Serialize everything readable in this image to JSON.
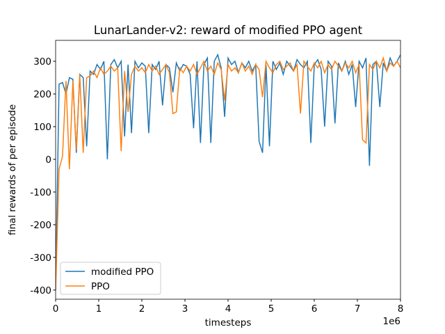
{
  "chart_data": {
    "type": "line",
    "title": "LunarLander-v2: reward of modified PPO agent",
    "x_label": "timesteps",
    "y_label": "final rewards of per episode",
    "x_offset_label": "1e6",
    "x": [
      0,
      0.08,
      0.16,
      0.24,
      0.32,
      0.4,
      0.48,
      0.56,
      0.64,
      0.72,
      0.8,
      0.88,
      0.96,
      1.04,
      1.12,
      1.2,
      1.28,
      1.36,
      1.44,
      1.52,
      1.6,
      1.68,
      1.76,
      1.84,
      1.92,
      2,
      2.08,
      2.16,
      2.24,
      2.32,
      2.4,
      2.48,
      2.56,
      2.64,
      2.72,
      2.8,
      2.88,
      2.96,
      3.04,
      3.12,
      3.2,
      3.28,
      3.36,
      3.44,
      3.52,
      3.6,
      3.68,
      3.76,
      3.84,
      3.92,
      4,
      4.08,
      4.16,
      4.24,
      4.32,
      4.4,
      4.48,
      4.56,
      4.64,
      4.72,
      4.8,
      4.88,
      4.96,
      5.04,
      5.12,
      5.2,
      5.28,
      5.36,
      5.44,
      5.52,
      5.6,
      5.68,
      5.76,
      5.84,
      5.92,
      6,
      6.08,
      6.16,
      6.24,
      6.32,
      6.4,
      6.48,
      6.56,
      6.64,
      6.72,
      6.8,
      6.88,
      6.96,
      7.04,
      7.12,
      7.2,
      7.28,
      7.36,
      7.44,
      7.52,
      7.6,
      7.68,
      7.76,
      7.84,
      7.92,
      8
    ],
    "series": [
      {
        "name": "modified PPO",
        "color": "#1f77b4",
        "values": [
          -400,
          230,
          235,
          200,
          250,
          245,
          20,
          260,
          250,
          40,
          270,
          260,
          290,
          275,
          300,
          0,
          290,
          305,
          280,
          300,
          70,
          290,
          80,
          300,
          280,
          295,
          285,
          80,
          290,
          275,
          300,
          165,
          290,
          280,
          205,
          295,
          270,
          290,
          285,
          260,
          95,
          300,
          50,
          290,
          310,
          50,
          300,
          320,
          280,
          130,
          310,
          290,
          300,
          265,
          295,
          280,
          300,
          270,
          290,
          55,
          20,
          290,
          40,
          300,
          275,
          295,
          260,
          300,
          285,
          270,
          305,
          290,
          280,
          300,
          50,
          290,
          305,
          275,
          100,
          300,
          285,
          110,
          295,
          270,
          300,
          260,
          290,
          160,
          300,
          280,
          310,
          -20,
          290,
          300,
          160,
          295,
          270,
          310,
          285,
          300,
          320
        ]
      },
      {
        "name": "PPO",
        "color": "#ff7f0e",
        "values": [
          -400,
          -30,
          10,
          240,
          -30,
          240,
          30,
          260,
          20,
          250,
          255,
          270,
          250,
          280,
          260,
          270,
          285,
          270,
          280,
          25,
          270,
          145,
          260,
          285,
          270,
          280,
          265,
          290,
          270,
          285,
          260,
          275,
          290,
          265,
          140,
          145,
          280,
          265,
          285,
          270,
          290,
          260,
          280,
          300,
          270,
          285,
          260,
          295,
          275,
          180,
          290,
          270,
          280,
          265,
          295,
          270,
          285,
          260,
          290,
          275,
          190,
          300,
          280,
          265,
          290,
          300,
          275,
          285,
          295,
          270,
          290,
          140,
          300,
          285,
          270,
          295,
          280,
          300,
          265,
          290,
          275,
          300,
          285,
          270,
          295,
          280,
          300,
          265,
          290,
          60,
          50,
          290,
          275,
          300,
          280,
          310,
          270,
          295,
          285,
          300,
          280
        ]
      }
    ],
    "xlim": [
      0,
      8
    ],
    "xticks": [
      0,
      1,
      2,
      3,
      4,
      5,
      6,
      7,
      8
    ],
    "ylim": [
      -428,
      364
    ],
    "yticks": [
      -400,
      -300,
      -200,
      -100,
      0,
      100,
      200,
      300
    ],
    "legend_position": "lower left"
  }
}
